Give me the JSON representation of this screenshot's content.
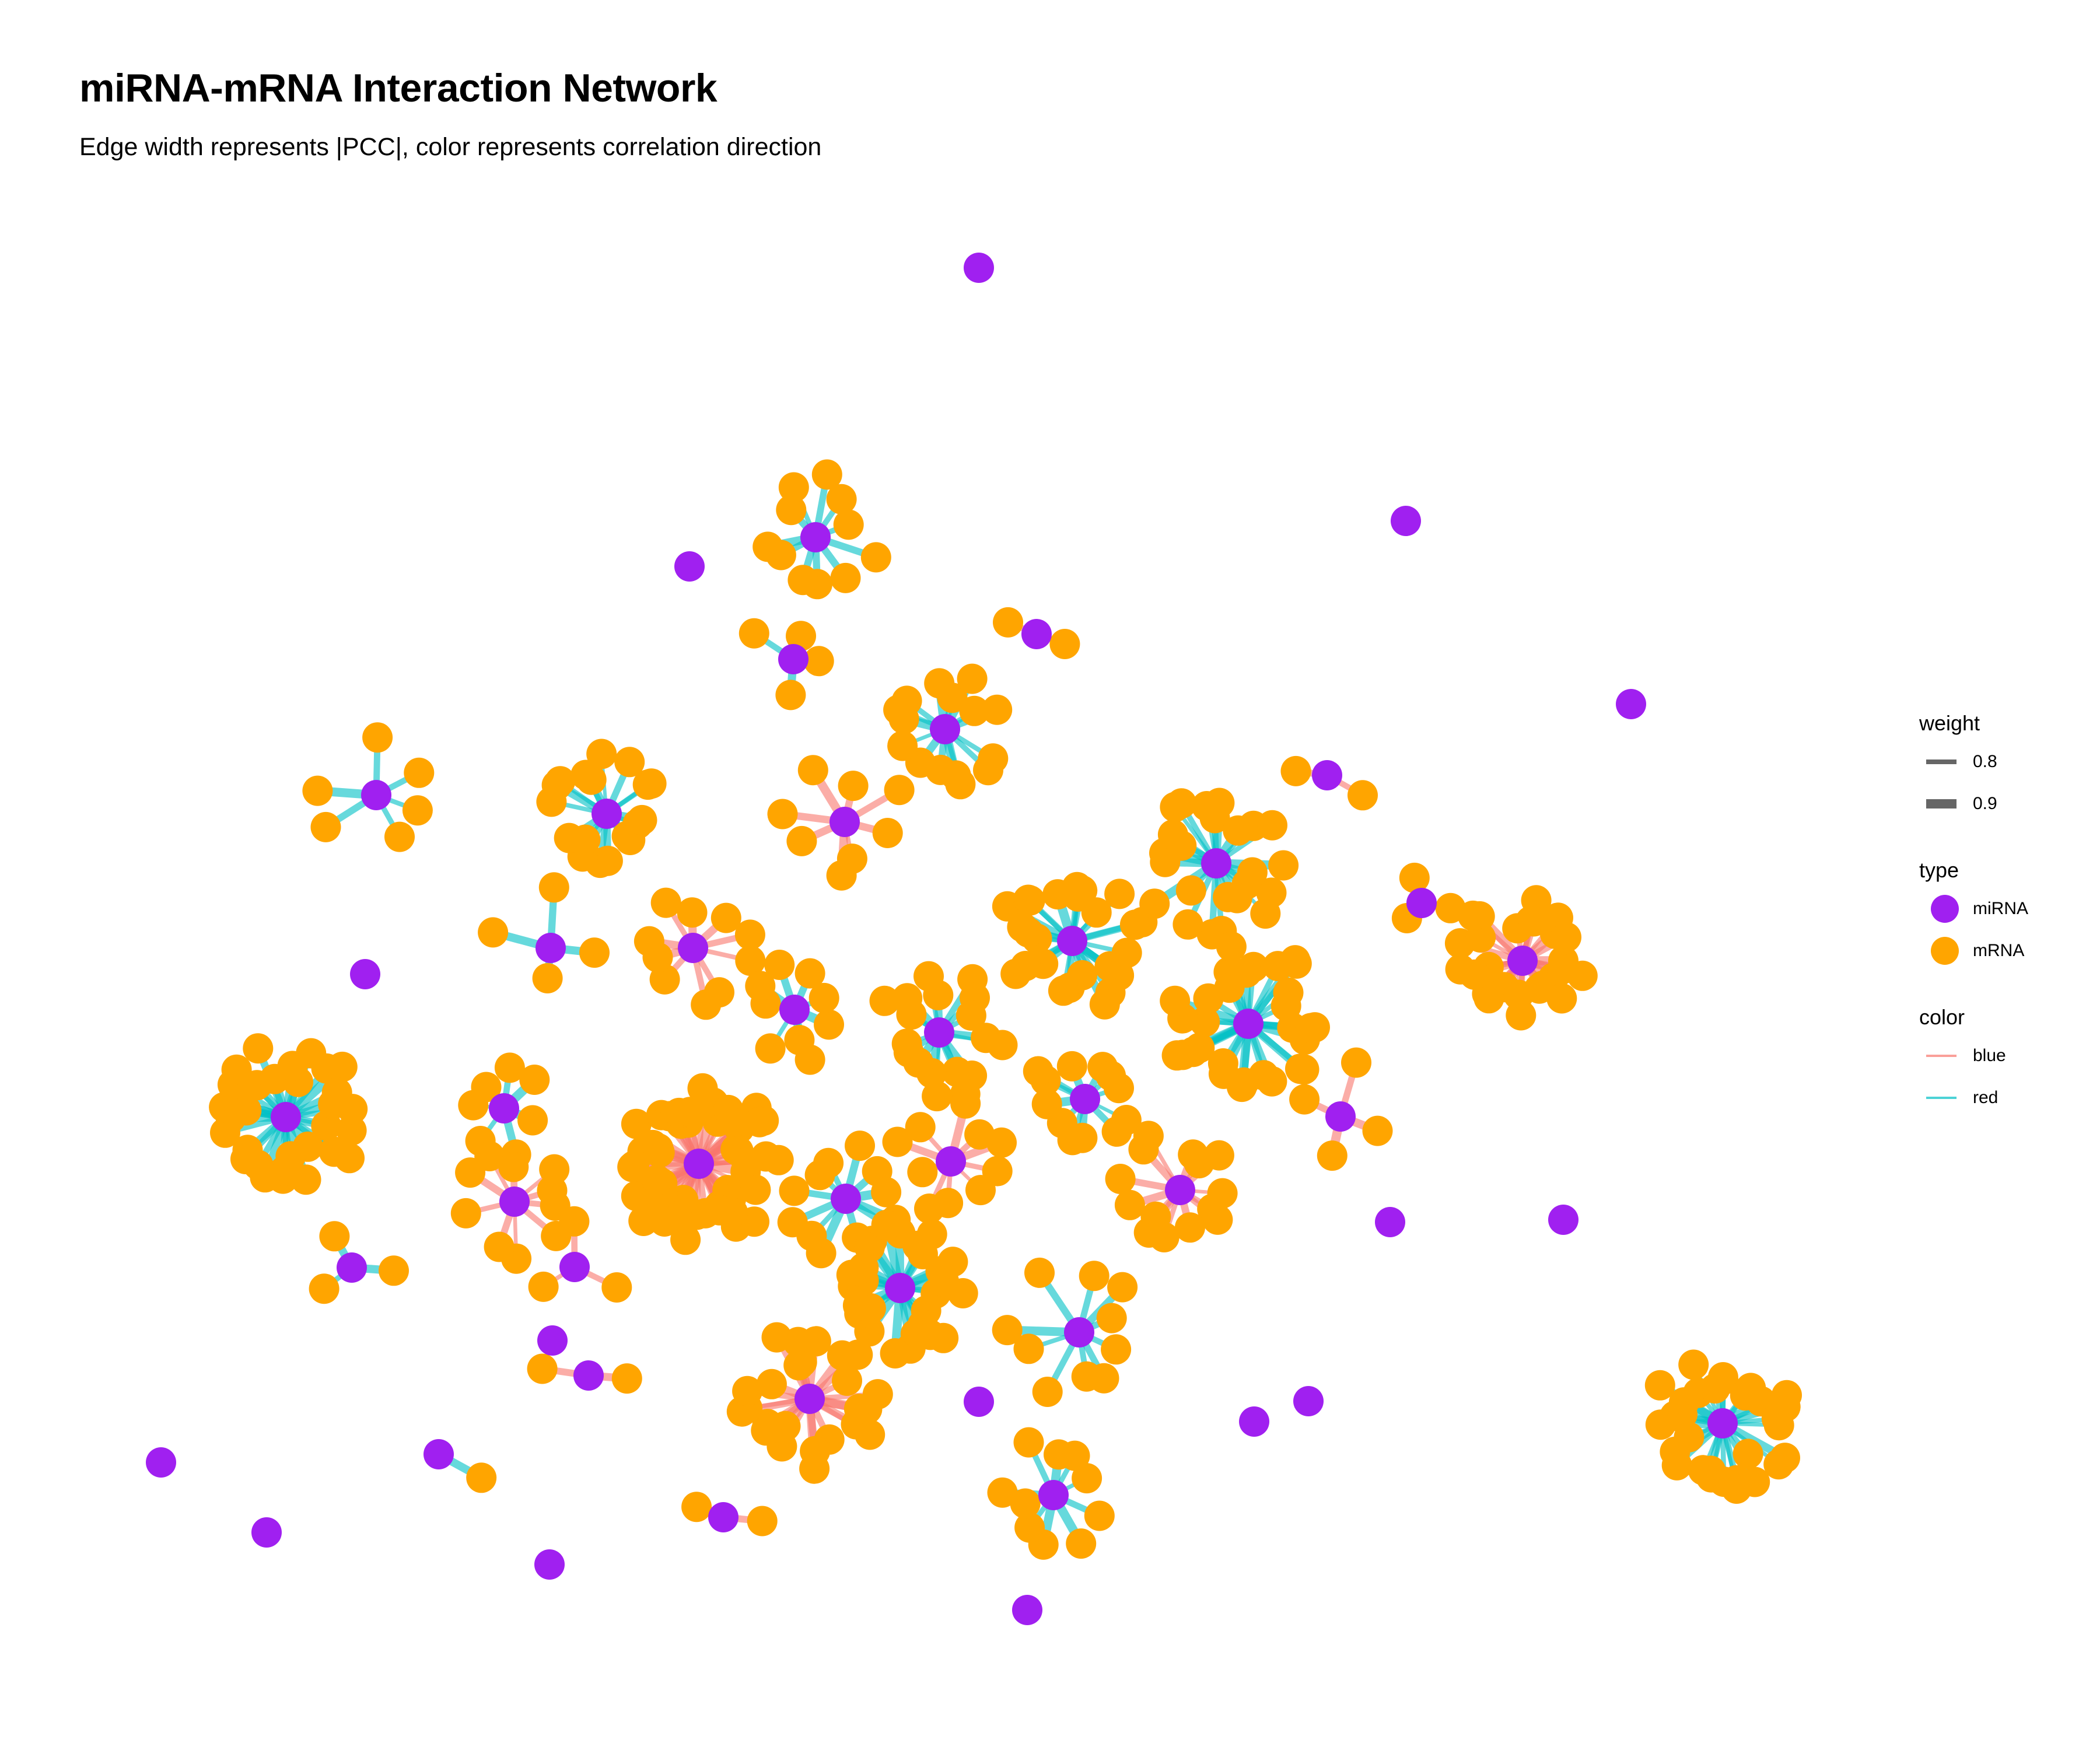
{
  "title": "miRNA-mRNA Interaction Network",
  "subtitle": "Edge width represents |PCC|, color represents correlation direction",
  "colors": {
    "miRNA": "#A020F0",
    "mRNA": "#FFA500",
    "edge_blue_label_color": "#F8766D",
    "edge_red_label_color": "#00BFC4"
  },
  "legend": {
    "weight": {
      "title": "weight",
      "items": [
        {
          "label": "0.8",
          "value": 0.8
        },
        {
          "label": "0.9",
          "value": 0.9
        }
      ]
    },
    "type": {
      "title": "type",
      "items": [
        {
          "label": "miRNA",
          "color": "#A020F0"
        },
        {
          "label": "mRNA",
          "color": "#FFA500"
        }
      ]
    },
    "color": {
      "title": "color",
      "items": [
        {
          "label": "blue",
          "color": "#F8766D"
        },
        {
          "label": "red",
          "color": "#00BFC4"
        }
      ]
    }
  }
}
